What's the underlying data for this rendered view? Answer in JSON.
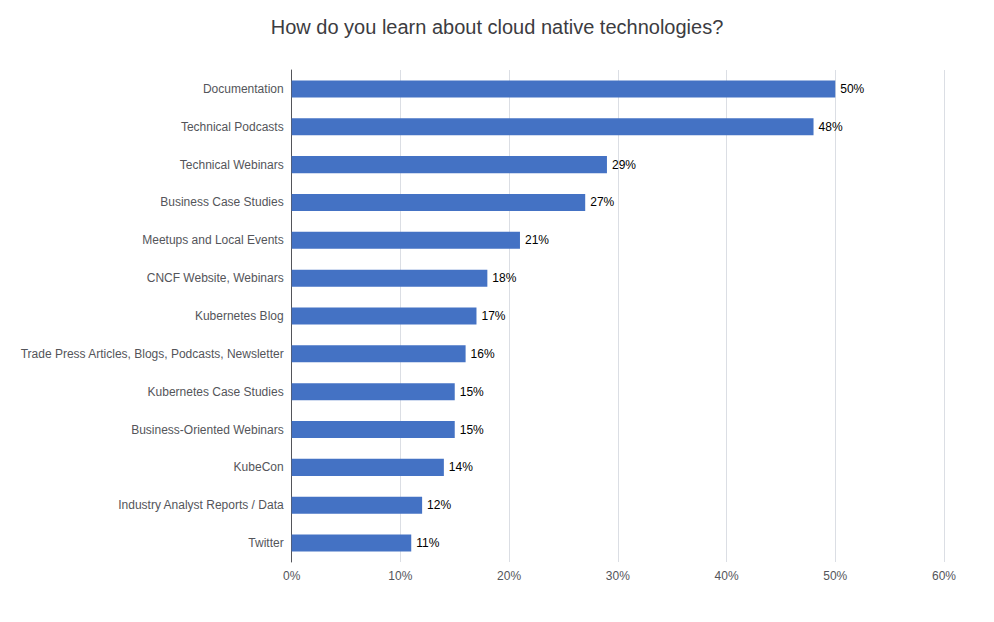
{
  "chart_data": {
    "type": "bar",
    "orientation": "horizontal",
    "title": "How do you learn about cloud native technologies?",
    "categories": [
      "Twitter",
      "Industry Analyst Reports / Data",
      "KubeCon",
      "Business-Oriented Webinars",
      "Kubernetes Case Studies",
      "Trade Press Articles, Blogs, Podcasts, Newsletter",
      "Kubernetes Blog",
      "CNCF Website, Webinars",
      "Meetups and Local Events",
      "Business Case Studies",
      "Technical Webinars",
      "Technical Podcasts",
      "Documentation"
    ],
    "values": [
      11,
      12,
      14,
      15,
      15,
      16,
      17,
      18,
      21,
      27,
      29,
      48,
      50
    ],
    "value_labels": [
      "11%",
      "12%",
      "14%",
      "15%",
      "15%",
      "16%",
      "17%",
      "18%",
      "21%",
      "27%",
      "29%",
      "48%",
      "50%"
    ],
    "color": "#4472C4",
    "xlim": [
      0,
      60
    ],
    "xticks": [
      {
        "value": 0,
        "label": "0%"
      },
      {
        "value": 10,
        "label": "10%"
      },
      {
        "value": 20,
        "label": "20%"
      },
      {
        "value": 30,
        "label": "30%"
      },
      {
        "value": 40,
        "label": "40%"
      },
      {
        "value": 50,
        "label": "50%"
      },
      {
        "value": 60,
        "label": "60%"
      }
    ],
    "grid": true,
    "data_labels": true
  }
}
